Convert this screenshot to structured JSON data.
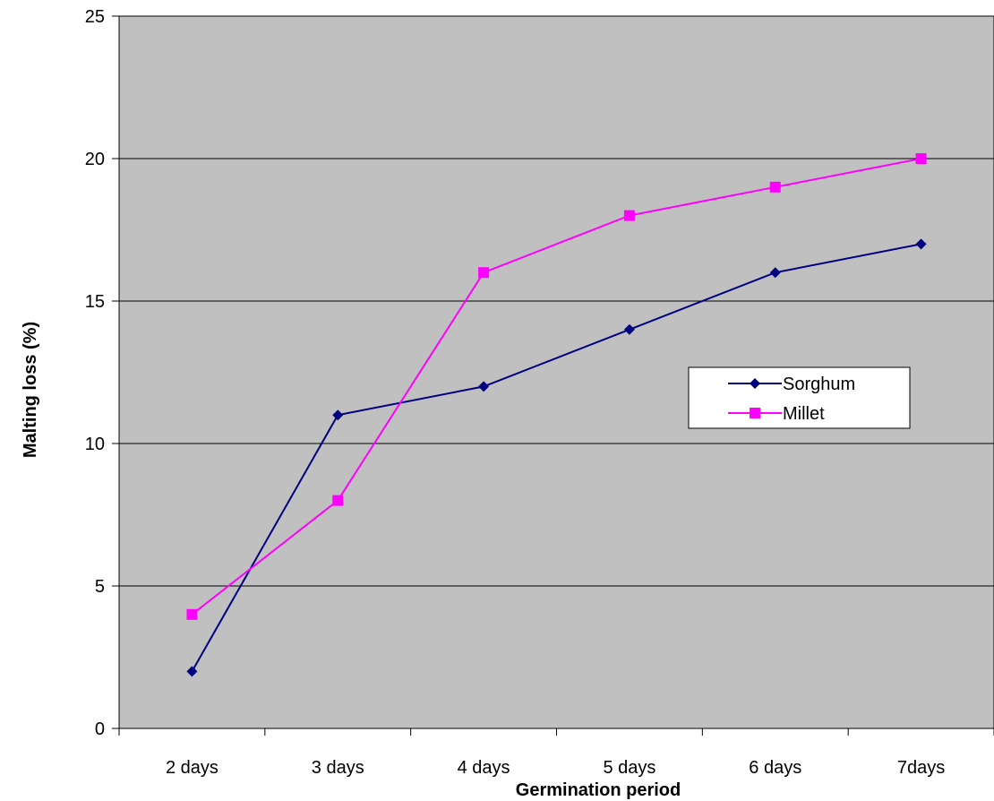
{
  "chart_data": {
    "type": "line",
    "title": "",
    "xlabel": "Germination period",
    "ylabel": "Malting loss (%)",
    "categories": [
      "2 days",
      "3 days",
      "4 days",
      "5 days",
      "6 days",
      "7days"
    ],
    "ylim": [
      0,
      25
    ],
    "yticks": [
      "0",
      "5",
      "10",
      "15",
      "20",
      "25"
    ],
    "grid": true,
    "plot_background": "#c0c0c0",
    "legend_position": "right",
    "series": [
      {
        "name": "Sorghum",
        "values": [
          2,
          11,
          12,
          14,
          16,
          17
        ],
        "color": "#000080",
        "marker": "diamond"
      },
      {
        "name": "Millet",
        "values": [
          4,
          8,
          16,
          18,
          19,
          20
        ],
        "color": "#ff00ff",
        "marker": "square"
      }
    ]
  }
}
